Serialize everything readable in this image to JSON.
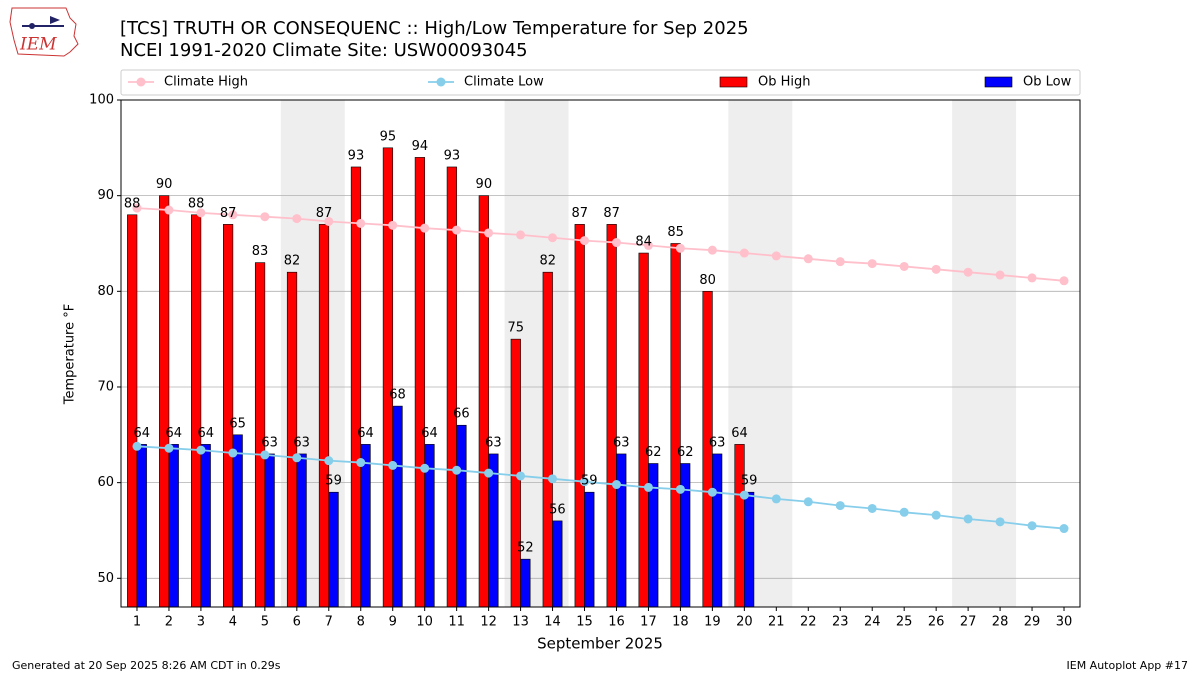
{
  "chart_data": {
    "type": "bar",
    "title": "[TCS] TRUTH OR CONSEQUENC :: High/Low Temperature for Sep 2025",
    "subtitle": "NCEI 1991-2020 Climate Site: USW00093045",
    "logo_text": "IEM",
    "x_label": "September 2025",
    "y_label": "Temperature °F",
    "footer_left": "Generated at 20 Sep 2025 8:26 AM CDT in 0.29s",
    "footer_right": "IEM Autoplot App #17",
    "x": [
      1,
      2,
      3,
      4,
      5,
      6,
      7,
      8,
      9,
      10,
      11,
      12,
      13,
      14,
      15,
      16,
      17,
      18,
      19,
      20,
      21,
      22,
      23,
      24,
      25,
      26,
      27,
      28,
      29,
      30
    ],
    "xlim": [
      0.5,
      30.5
    ],
    "ylim": [
      47,
      100
    ],
    "yticks": [
      50,
      60,
      70,
      80,
      90,
      100
    ],
    "grid": true,
    "shaded_ranges": [
      [
        5.5,
        7.5
      ],
      [
        12.5,
        14.5
      ],
      [
        19.5,
        21.5
      ],
      [
        26.5,
        28.5
      ]
    ],
    "series": [
      {
        "name": "Climate High",
        "kind": "line",
        "color": "#ffc0cb",
        "values": [
          88.7,
          88.5,
          88.2,
          88.0,
          87.8,
          87.6,
          87.3,
          87.1,
          86.9,
          86.6,
          86.4,
          86.1,
          85.9,
          85.6,
          85.3,
          85.1,
          84.8,
          84.5,
          84.3,
          84.0,
          83.7,
          83.4,
          83.1,
          82.9,
          82.6,
          82.3,
          82.0,
          81.7,
          81.4,
          81.1
        ]
      },
      {
        "name": "Climate Low",
        "kind": "line",
        "color": "#87ceeb",
        "values": [
          63.8,
          63.6,
          63.4,
          63.1,
          62.9,
          62.6,
          62.3,
          62.1,
          61.8,
          61.5,
          61.3,
          61.0,
          60.7,
          60.4,
          60.1,
          59.8,
          59.5,
          59.3,
          59.0,
          58.7,
          58.3,
          58.0,
          57.6,
          57.3,
          56.9,
          56.6,
          56.2,
          55.9,
          55.5,
          55.2
        ]
      },
      {
        "name": "Ob High",
        "kind": "bar",
        "color": "#ff0000",
        "values": [
          88,
          90,
          88,
          87,
          83,
          82,
          87,
          93,
          95,
          94,
          93,
          90,
          75,
          82,
          87,
          87,
          84,
          85,
          80,
          64,
          null,
          null,
          null,
          null,
          null,
          null,
          null,
          null,
          null,
          null
        ]
      },
      {
        "name": "Ob Low",
        "kind": "bar",
        "color": "#0000ff",
        "values": [
          64,
          64,
          64,
          65,
          63,
          63,
          59,
          64,
          68,
          64,
          66,
          63,
          52,
          56,
          59,
          63,
          62,
          62,
          63,
          59,
          null,
          null,
          null,
          null,
          null,
          null,
          null,
          null,
          null,
          null
        ]
      }
    ]
  }
}
